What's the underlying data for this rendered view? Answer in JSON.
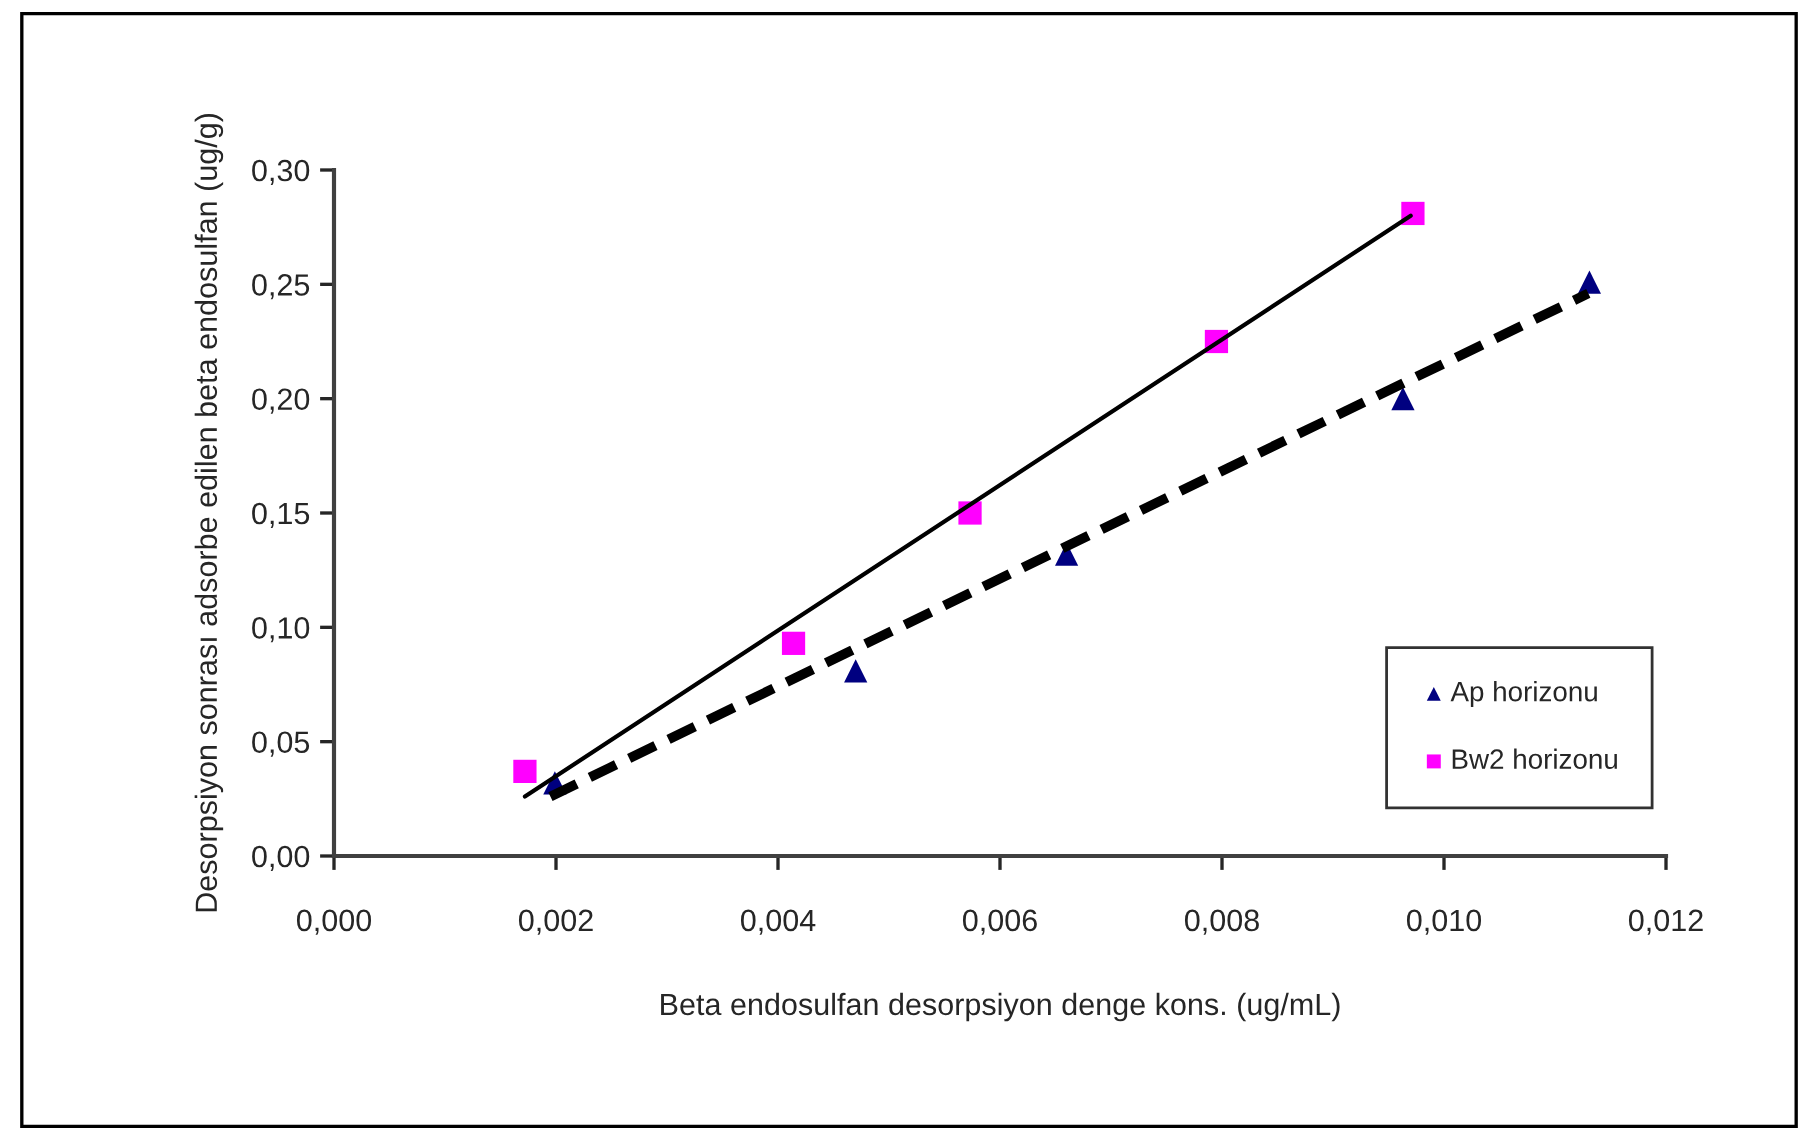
{
  "chart_data": {
    "type": "scatter",
    "xlabel": "Beta endosulfan desorpsiyon denge kons. (ug/mL)",
    "ylabel": "Desorpsiyon sonrası adsorbe edilen beta endosulfan (ug/g)",
    "xlim": [
      0,
      0.012
    ],
    "xticks": [
      {
        "value": 0,
        "label": "0,000"
      },
      {
        "value": 0.002,
        "label": "0,002"
      },
      {
        "value": 0.004,
        "label": "0,004"
      },
      {
        "value": 0.006,
        "label": "0,006"
      },
      {
        "value": 0.008,
        "label": "0,008"
      },
      {
        "value": 0.01,
        "label": "0,010"
      },
      {
        "value": 0.012,
        "label": "0,012"
      }
    ],
    "ylim": [
      0,
      0.3
    ],
    "yticks": [
      {
        "value": 0,
        "label": "0,00"
      },
      {
        "value": 0.05,
        "label": "0,05"
      },
      {
        "value": 0.1,
        "label": "0,10"
      },
      {
        "value": 0.15,
        "label": "0,15"
      },
      {
        "value": 0.2,
        "label": "0,20"
      },
      {
        "value": 0.25,
        "label": "0,25"
      },
      {
        "value": 0.3,
        "label": "0,30"
      }
    ],
    "grid": false,
    "legend": "lower right",
    "series": [
      {
        "name": "Ap horizonu",
        "color": "#000080",
        "marker": "triangle",
        "x": [
          0.00199,
          0.0047,
          0.0066,
          0.00963,
          0.01131
        ],
        "values": [
          0.032,
          0.081,
          0.132,
          0.2,
          0.251
        ]
      },
      {
        "name": "Bw2 horizonu",
        "color": "#ff00ff",
        "marker": "square",
        "x": [
          0.00172,
          0.00414,
          0.00573,
          0.00795,
          0.00972
        ],
        "values": [
          0.037,
          0.093,
          0.15,
          0.225,
          0.281
        ]
      },
      {
        "type": "line",
        "color": "#000000",
        "line_style": "dashed",
        "marker": "none",
        "x": [
          0.00195,
          0.0113
        ],
        "values": [
          0.026,
          0.246
        ]
      },
      {
        "type": "line",
        "color": "#000000",
        "line_style": "solid",
        "marker": "none",
        "x": [
          0.00172,
          0.0097
        ],
        "values": [
          0.026,
          0.28
        ]
      }
    ]
  }
}
